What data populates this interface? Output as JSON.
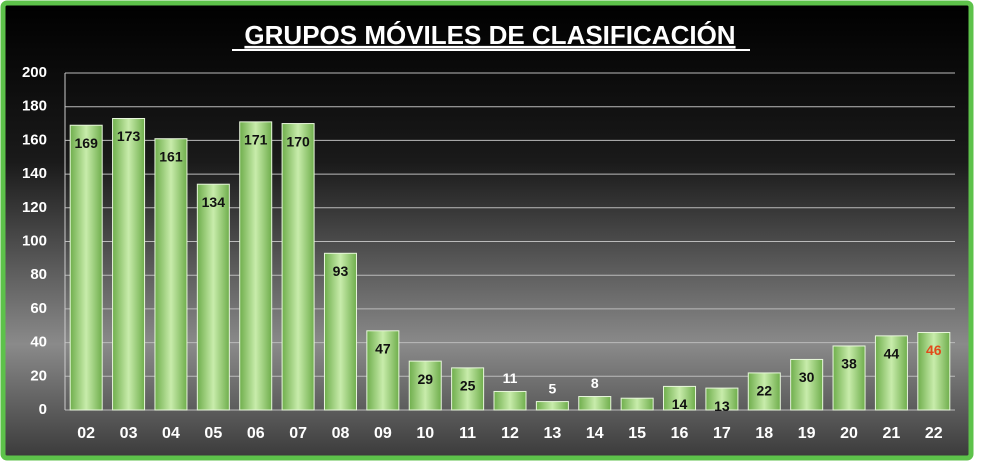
{
  "chart_data": {
    "type": "bar",
    "title": "GRUPOS MÓVILES DE CLASIFICACIÓN",
    "categories": [
      "02",
      "03",
      "04",
      "05",
      "06",
      "07",
      "08",
      "09",
      "10",
      "11",
      "12",
      "13",
      "14",
      "15",
      "16",
      "17",
      "18",
      "19",
      "20",
      "21",
      "22"
    ],
    "values": [
      169,
      173,
      161,
      134,
      171,
      170,
      93,
      47,
      29,
      25,
      11,
      5,
      8,
      7,
      14,
      13,
      22,
      30,
      38,
      44,
      46
    ],
    "value_labels": [
      "169",
      "173",
      "161",
      "134",
      "171",
      "170",
      "93",
      "47",
      "29",
      "25",
      "11",
      "5",
      "8",
      null,
      "14",
      "13",
      "22",
      "30",
      "38",
      "44",
      "46"
    ],
    "color": "#9ccf7a",
    "label_color": "#111111",
    "highlight": {
      "index": 20,
      "color": "#e24a1a"
    },
    "ylim": [
      0,
      200
    ],
    "yticks": [
      0,
      20,
      40,
      60,
      80,
      100,
      120,
      140,
      160,
      180,
      200
    ],
    "grid": true
  }
}
